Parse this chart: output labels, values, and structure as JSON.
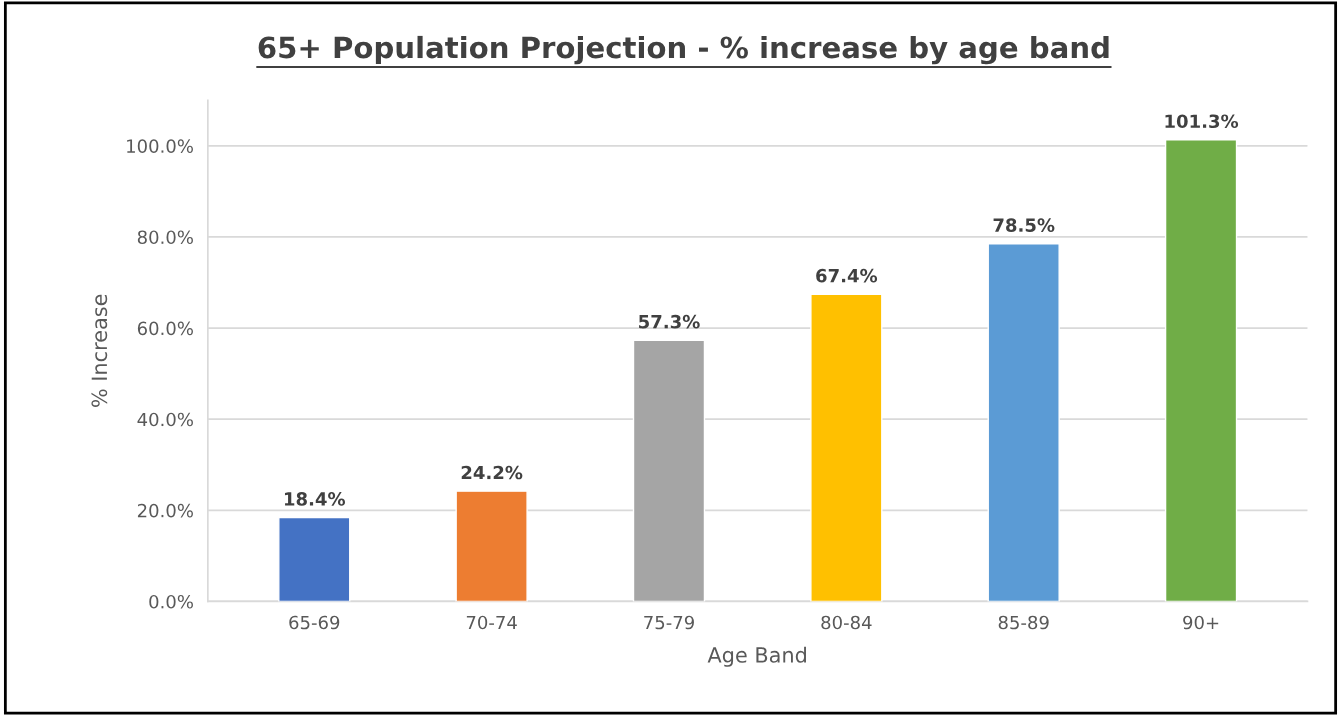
{
  "chart_data": {
    "type": "bar",
    "title": "65+ Population Projection - % increase by age band",
    "xlabel": "Age Band",
    "ylabel": "% Increase",
    "categories": [
      "65-69",
      "70-74",
      "75-79",
      "80-84",
      "85-89",
      "90+"
    ],
    "values": [
      18.4,
      24.2,
      57.3,
      67.4,
      78.5,
      101.3
    ],
    "colors": [
      "#4472c4",
      "#ed7d31",
      "#a5a5a5",
      "#ffc000",
      "#5b9bd5",
      "#70ad47"
    ],
    "value_labels": [
      "18.4%",
      "24.2%",
      "57.3%",
      "67.4%",
      "78.5%",
      "101.3%"
    ],
    "ylim": [
      0,
      110
    ],
    "yticks": [
      {
        "value": 0,
        "label": "0.0%"
      },
      {
        "value": 20,
        "label": "20.0%"
      },
      {
        "value": 40,
        "label": "40.0%"
      },
      {
        "value": 60,
        "label": "60.0%"
      },
      {
        "value": 80,
        "label": "80.0%"
      },
      {
        "value": 100,
        "label": "100.0%"
      }
    ],
    "grid": "y",
    "legend": false
  }
}
